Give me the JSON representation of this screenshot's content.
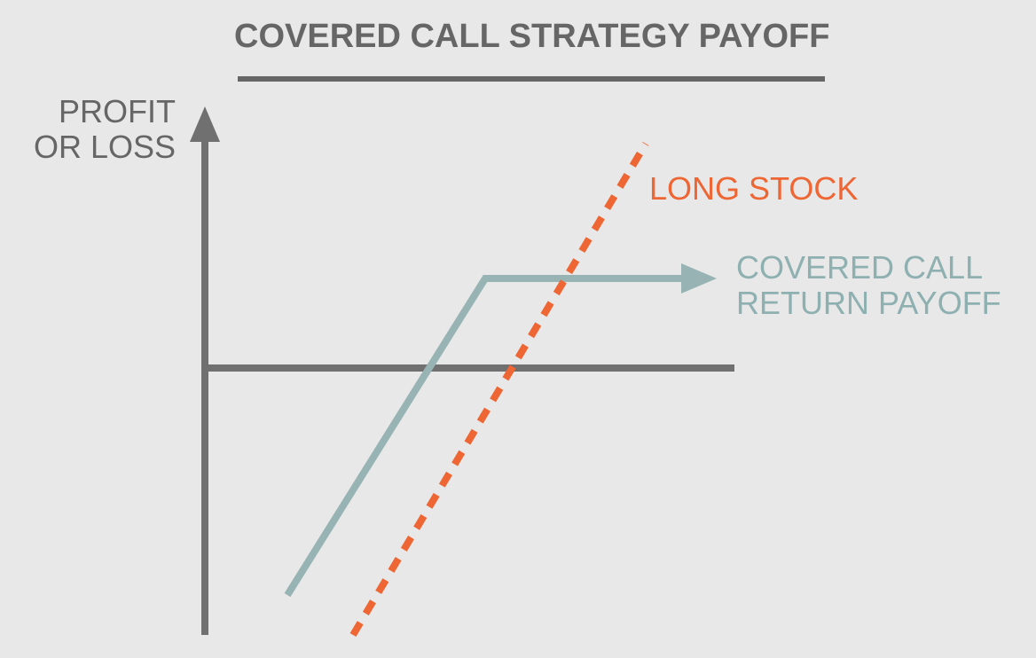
{
  "title": "COVERED CALL STRATEGY PAYOFF",
  "y_axis_label": [
    "PROFIT",
    "OR LOSS"
  ],
  "series": {
    "long_stock": {
      "label": "LONG STOCK",
      "color": "#ee6633"
    },
    "covered_call": {
      "label_lines": [
        "COVERED CALL",
        "RETURN PAYOFF"
      ],
      "color": "#8fb0b0"
    }
  },
  "axis_color": "#707070",
  "background": "#e8e8e8"
}
